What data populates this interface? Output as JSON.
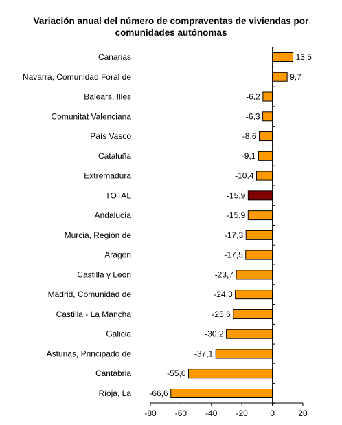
{
  "title_lines": [
    "Variación anual del número de compraventas de viviendas por",
    "comunidades autónomas"
  ],
  "chart_data": {
    "type": "bar",
    "orientation": "horizontal",
    "title": "Variación anual del número de compraventas de viviendas por comunidades autónomas",
    "categories": [
      "Canarias",
      "Navarra, Comunidad Foral de",
      "Balears, Illes",
      "Comunitat Valenciana",
      "País Vasco",
      "Cataluña",
      "Extremadura",
      "TOTAL",
      "Andalucía",
      "Murcia, Región de",
      "Aragón",
      "Castilla y León",
      "Madrid, Comunidad de",
      "Castilla - La Mancha",
      "Galicia",
      "Asturias, Principado de",
      "Cantabria",
      "Rioja, La"
    ],
    "values": [
      13.5,
      9.7,
      -6.2,
      -6.3,
      -8.6,
      -9.1,
      -10.4,
      -15.9,
      -15.9,
      -17.3,
      -17.5,
      -23.7,
      -24.3,
      -25.6,
      -30.2,
      -37.1,
      -55.0,
      -66.6
    ],
    "value_labels": [
      "13,5",
      "9,7",
      "-6,2",
      "-6,3",
      "-8,6",
      "-9,1",
      "-10,4",
      "-15,9",
      "-15,9",
      "-17,3",
      "-17,5",
      "-23,7",
      "-24,3",
      "-25,6",
      "-30,2",
      "-37,1",
      "-55,0",
      "-66,6"
    ],
    "highlight_category": "TOTAL",
    "xlim": [
      -80,
      20
    ],
    "xticks": [
      -80,
      -60,
      -40,
      -20,
      0,
      20
    ],
    "xtick_labels": [
      "-80",
      "-60",
      "-40",
      "-20",
      "0",
      "20"
    ],
    "xlabel": "",
    "ylabel": "",
    "grid": false,
    "legend": "none",
    "colors": {
      "bar": "#FF9900",
      "highlight": "#800000",
      "outline": "#000000",
      "axis": "#000000"
    }
  }
}
